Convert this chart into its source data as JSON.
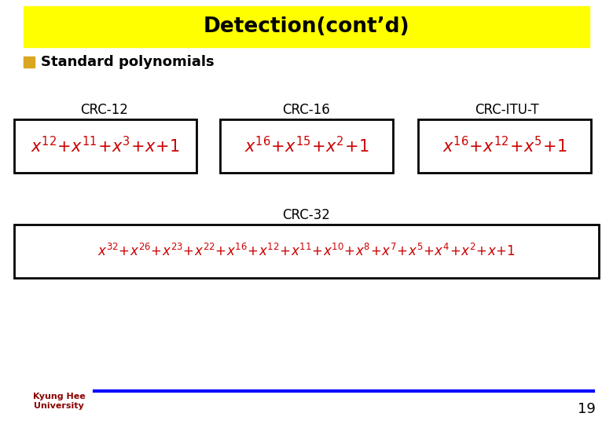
{
  "title": "Detection(cont’d)",
  "title_bg": "#FFFF00",
  "title_color": "#000000",
  "bg_color": "#FFFFFF",
  "bullet_color": "#DAA520",
  "bullet_label": "Standard polynomials",
  "bullet_label_color": "#000000",
  "crc12_label": "CRC-12",
  "crc16_label": "CRC-16",
  "crcitu_label": "CRC-ITU-T",
  "crc32_label": "CRC-32",
  "crc12_formula": "$x^{12}\\!+\\!x^{11}\\!+\\!x^{3}\\!+\\!x\\!+\\!1$",
  "crc16_formula": "$x^{16}\\!+\\!x^{15}\\!+\\!x^{2}\\!+\\!1$",
  "crcitu_formula": "$x^{16}\\!+\\!x^{12}\\!+\\!x^{5}\\!+\\!1$",
  "crc32_formula": "$x^{32}\\!+\\!x^{26}\\!+\\!x^{23}\\!+\\!x^{22}\\!+\\!x^{16}\\!+\\!x^{12}\\!+\\!x^{11}\\!+\\!x^{10}\\!+\\!x^{8}\\!+\\!x^{7}\\!+\\!x^{5}\\!+\\!x^{4}\\!+\\!x^{2}\\!+\\!x\\!+\\!1$",
  "formula_color": "#CC0000",
  "label_color": "#000000",
  "page_number": "19",
  "footer_line_color": "#0000FF",
  "university_text": "Kyung Hee\nUniversity"
}
